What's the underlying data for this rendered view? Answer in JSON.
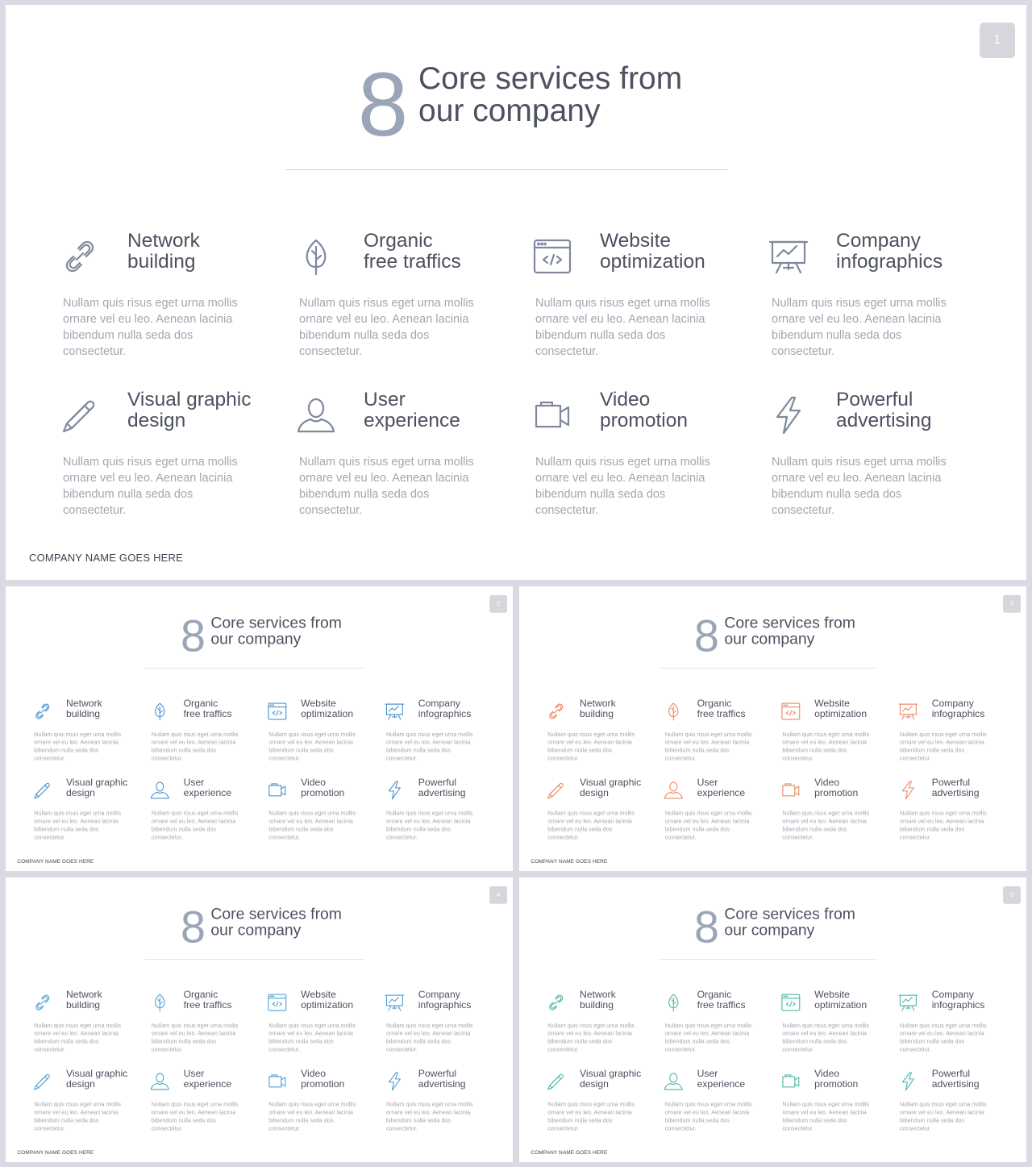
{
  "slides": [
    {
      "page": "1",
      "accent": "#7f889c",
      "numColor": "#9aa5b8"
    },
    {
      "page": "2",
      "accent": "#4b90cf",
      "numColor": "#9aa5b8"
    },
    {
      "page": "3",
      "accent": "#ec8760",
      "numColor": "#9aa5b8"
    },
    {
      "page": "4",
      "accent": "#4ba1d6",
      "numColor": "#9aa5b8"
    },
    {
      "page": "5",
      "accent": "#4ab6a8",
      "numColor": "#9aa5b8"
    }
  ],
  "header": {
    "number": "8",
    "title_line1": "Core services from",
    "title_line2": "our company"
  },
  "services": [
    {
      "icon": "link-icon",
      "line1": "Network",
      "line2": "building"
    },
    {
      "icon": "leaf-icon",
      "line1": "Organic",
      "line2": "free traffics"
    },
    {
      "icon": "code-window-icon",
      "line1": "Website",
      "line2": "optimization"
    },
    {
      "icon": "presentation-chart-icon",
      "line1": "Company",
      "line2": "infographics"
    },
    {
      "icon": "pencil-icon",
      "line1": "Visual graphic",
      "line2": "design"
    },
    {
      "icon": "user-icon",
      "line1": "User",
      "line2": "experience"
    },
    {
      "icon": "video-camera-icon",
      "line1": "Video",
      "line2": "promotion"
    },
    {
      "icon": "lightning-icon",
      "line1": "Powerful",
      "line2": "advertising"
    }
  ],
  "description": "Nullam quis risus eget urna mollis ornare vel eu leo. Aenean lacinia bibendum nulla seda dos consectetur.",
  "footer": "COMPANY NAME GOES HERE"
}
